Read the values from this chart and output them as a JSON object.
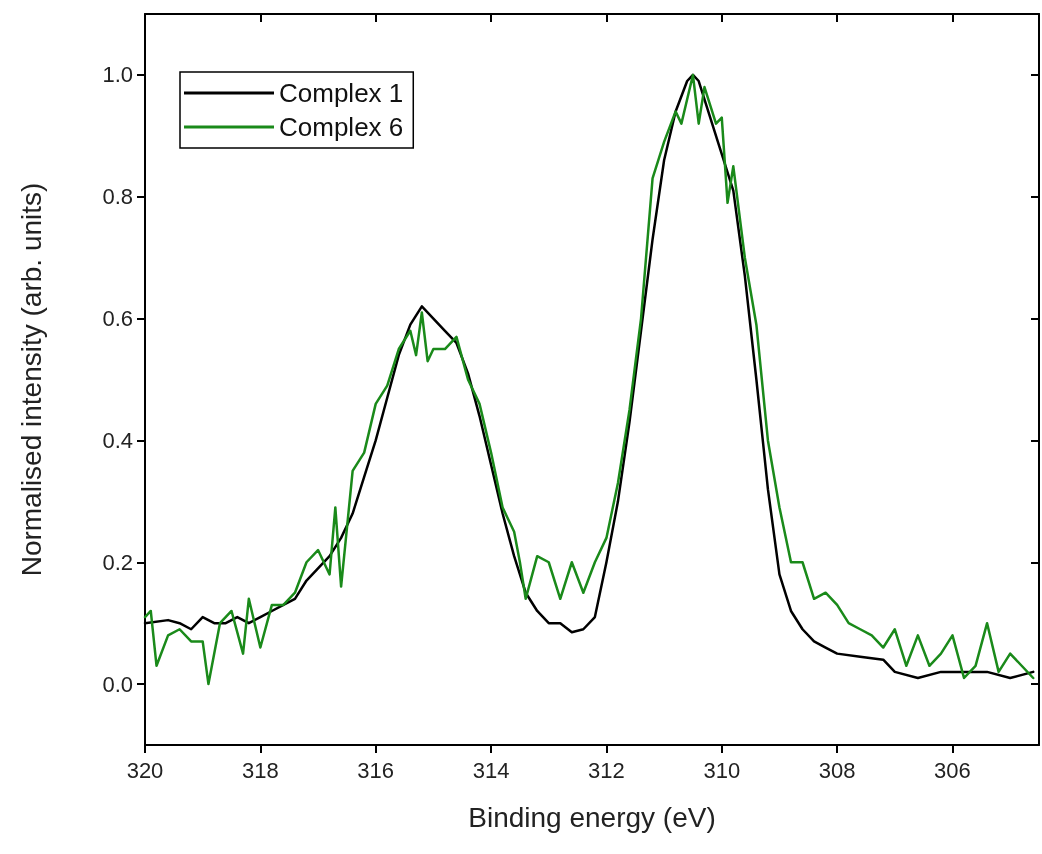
{
  "chart_data": {
    "type": "line",
    "xlabel": "Binding energy (eV)",
    "ylabel": "Normalised intensity (arb. units)",
    "xlim": [
      320,
      304.5
    ],
    "xticks": [
      320,
      318,
      316,
      314,
      312,
      310,
      308,
      306
    ],
    "ylim": [
      -0.1,
      1.1
    ],
    "yticks": [
      {
        "value": 0,
        "label": "0.0"
      },
      0.2,
      0.4,
      0.6,
      0.8,
      {
        "value": 1,
        "label": "1.0"
      }
    ],
    "grid": false,
    "legend": "top left",
    "line_style": "solid",
    "marker": "none",
    "series": [
      {
        "name": "Complex 1",
        "color": "#000000",
        "x": [
          320,
          319.6,
          319.4,
          319.2,
          319.0,
          318.8,
          318.6,
          318.4,
          318.2,
          318.0,
          317.8,
          317.6,
          317.4,
          317.2,
          317.0,
          316.8,
          316.6,
          316.4,
          316.2,
          316.0,
          315.8,
          315.6,
          315.4,
          315.2,
          315.0,
          314.8,
          314.6,
          314.4,
          314.2,
          314.0,
          313.8,
          313.6,
          313.4,
          313.2,
          313.0,
          312.8,
          312.6,
          312.4,
          312.2,
          312.0,
          311.8,
          311.6,
          311.4,
          311.2,
          311.0,
          310.8,
          310.6,
          310.5,
          310.4,
          310.2,
          310.0,
          309.8,
          309.6,
          309.4,
          309.2,
          309.0,
          308.8,
          308.6,
          308.4,
          308.2,
          308.0,
          307.6,
          307.2,
          307.0,
          306.6,
          306.2,
          305.8,
          305.4,
          305.0,
          304.6
        ],
        "values": [
          0.1,
          0.105,
          0.1,
          0.09,
          0.11,
          0.1,
          0.1,
          0.11,
          0.1,
          0.11,
          0.12,
          0.13,
          0.14,
          0.17,
          0.19,
          0.21,
          0.24,
          0.28,
          0.34,
          0.4,
          0.47,
          0.54,
          0.59,
          0.62,
          0.6,
          0.58,
          0.56,
          0.51,
          0.44,
          0.36,
          0.28,
          0.21,
          0.15,
          0.12,
          0.1,
          0.1,
          0.085,
          0.09,
          0.11,
          0.2,
          0.3,
          0.43,
          0.58,
          0.73,
          0.86,
          0.94,
          0.99,
          1.0,
          0.99,
          0.93,
          0.87,
          0.81,
          0.67,
          0.5,
          0.32,
          0.18,
          0.12,
          0.09,
          0.07,
          0.06,
          0.05,
          0.045,
          0.04,
          0.02,
          0.01,
          0.02,
          0.02,
          0.02,
          0.01,
          0.02
        ]
      },
      {
        "name": "Complex 6",
        "color": "#1a8a1a",
        "x": [
          320,
          319.9,
          319.8,
          319.6,
          319.4,
          319.2,
          319.0,
          318.9,
          318.7,
          318.5,
          318.3,
          318.2,
          318.0,
          317.8,
          317.6,
          317.4,
          317.2,
          317.0,
          316.8,
          316.7,
          316.6,
          316.4,
          316.2,
          316.0,
          315.8,
          315.6,
          315.4,
          315.3,
          315.2,
          315.1,
          315.0,
          314.8,
          314.6,
          314.4,
          314.2,
          314.0,
          313.8,
          313.6,
          313.5,
          313.4,
          313.2,
          313.0,
          312.8,
          312.6,
          312.4,
          312.2,
          312.0,
          311.8,
          311.6,
          311.4,
          311.2,
          311.0,
          310.8,
          310.7,
          310.6,
          310.5,
          310.4,
          310.3,
          310.1,
          310.0,
          309.9,
          309.8,
          309.6,
          309.4,
          309.2,
          309.0,
          308.8,
          308.6,
          308.4,
          308.2,
          308.0,
          307.8,
          307.6,
          307.4,
          307.2,
          307.0,
          306.8,
          306.6,
          306.4,
          306.2,
          306.0,
          305.8,
          305.6,
          305.4,
          305.2,
          305.0,
          304.6
        ],
        "values": [
          0.11,
          0.12,
          0.03,
          0.08,
          0.09,
          0.07,
          0.07,
          0.0,
          0.1,
          0.12,
          0.05,
          0.14,
          0.06,
          0.13,
          0.13,
          0.15,
          0.2,
          0.22,
          0.18,
          0.29,
          0.16,
          0.35,
          0.38,
          0.46,
          0.49,
          0.55,
          0.58,
          0.54,
          0.61,
          0.53,
          0.55,
          0.55,
          0.57,
          0.5,
          0.46,
          0.38,
          0.29,
          0.25,
          0.2,
          0.14,
          0.21,
          0.2,
          0.14,
          0.2,
          0.15,
          0.2,
          0.24,
          0.33,
          0.45,
          0.6,
          0.83,
          0.89,
          0.94,
          0.92,
          0.96,
          1.0,
          0.92,
          0.98,
          0.92,
          0.93,
          0.79,
          0.85,
          0.7,
          0.59,
          0.4,
          0.29,
          0.2,
          0.2,
          0.14,
          0.15,
          0.13,
          0.1,
          0.09,
          0.08,
          0.06,
          0.09,
          0.03,
          0.08,
          0.03,
          0.05,
          0.08,
          0.01,
          0.03,
          0.1,
          0.02,
          0.05,
          0.01
        ]
      }
    ]
  }
}
